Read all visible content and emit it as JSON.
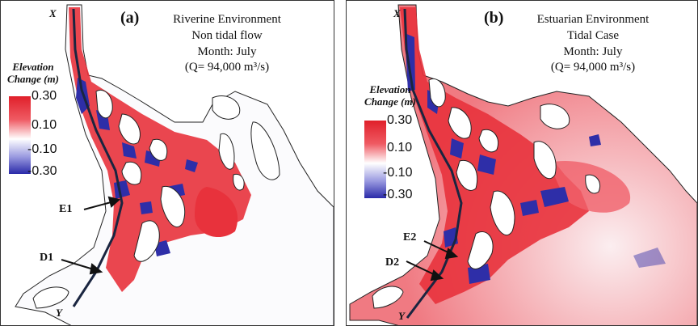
{
  "panels": [
    {
      "label": "(a)",
      "environment": "Riverine Environment",
      "flow": "Non tidal flow",
      "month": "Month: July",
      "discharge": "(Q= 94,000 m³/s)",
      "legend_title_1": "Elevation",
      "legend_title_2": "Change (m)",
      "ticks": [
        "0.30",
        "0.10",
        "-0.10",
        "-0.30"
      ],
      "start_label": "X",
      "end_label": "Y",
      "point_upper": "E1",
      "point_lower": "D1"
    },
    {
      "label": "(b)",
      "environment": "Estuarian Environment",
      "flow": "Tidal Case",
      "month": "Month: July",
      "discharge": "(Q= 94,000 m³/s)",
      "legend_title_1": "Elevation",
      "legend_title_2": "Change (m)",
      "ticks": [
        "0.30",
        "0.10",
        "-0.10",
        "-0.30"
      ],
      "start_label": "X",
      "end_label": "Y",
      "point_upper": "E2",
      "point_lower": "D2"
    }
  ],
  "colors": {
    "erosion": "#2a2aa8",
    "deposition": "#e0202a",
    "transect": "#1a2540"
  }
}
